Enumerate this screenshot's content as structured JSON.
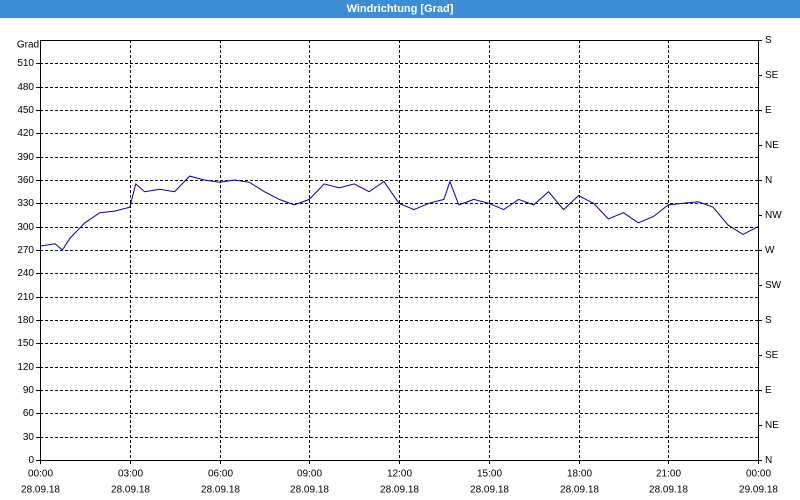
{
  "chart_data": {
    "type": "line",
    "title": "Windrichtung [Grad]",
    "y_label": "Grad",
    "x": [
      0,
      0.5,
      0.75,
      1,
      1.5,
      2,
      2.5,
      3,
      3.2,
      3.5,
      4,
      4.5,
      5,
      5.5,
      6,
      6.5,
      7,
      7.5,
      8,
      8.5,
      9,
      9.5,
      10,
      10.5,
      11,
      11.5,
      12,
      12.5,
      13,
      13.5,
      13.7,
      14,
      14.5,
      15,
      15.5,
      16,
      16.5,
      17,
      17.5,
      18,
      18.5,
      19,
      19.5,
      20,
      20.5,
      21,
      21.5,
      22,
      22.5,
      23,
      23.5,
      24
    ],
    "series": [
      {
        "name": "Windrichtung",
        "color": "#0000a0",
        "values": [
          275,
          278,
          270,
          285,
          305,
          318,
          320,
          325,
          355,
          345,
          348,
          345,
          365,
          360,
          357,
          360,
          357,
          345,
          335,
          328,
          335,
          355,
          350,
          355,
          345,
          358,
          330,
          322,
          330,
          335,
          358,
          328,
          335,
          330,
          322,
          335,
          328,
          345,
          322,
          340,
          330,
          310,
          318,
          305,
          313,
          328,
          330,
          332,
          325,
          302,
          290,
          300
        ]
      }
    ],
    "xlim": [
      0,
      24
    ],
    "xticks": [
      {
        "value": 0,
        "label": "00:00"
      },
      {
        "value": 3,
        "label": "03:00"
      },
      {
        "value": 6,
        "label": "06:00"
      },
      {
        "value": 9,
        "label": "09:00"
      },
      {
        "value": 12,
        "label": "12:00"
      },
      {
        "value": 15,
        "label": "15:00"
      },
      {
        "value": 18,
        "label": "18:00"
      },
      {
        "value": 21,
        "label": "21:00"
      },
      {
        "value": 24,
        "label": "00:00"
      }
    ],
    "xtick_dates": [
      "28.09.18",
      "28.09.18",
      "28.09.18",
      "28.09.18",
      "28.09.18",
      "28.09.18",
      "28.09.18",
      "28.09.18",
      "29.09.18"
    ],
    "ylim": [
      0,
      540
    ],
    "yticks": [
      0,
      30,
      60,
      90,
      120,
      150,
      180,
      210,
      240,
      270,
      300,
      330,
      360,
      390,
      420,
      450,
      480,
      510
    ],
    "y2lim": [
      0,
      540
    ],
    "y2ticks": [
      {
        "value": 0,
        "label": "N"
      },
      {
        "value": 45,
        "label": "NE"
      },
      {
        "value": 90,
        "label": "E"
      },
      {
        "value": 135,
        "label": "SE"
      },
      {
        "value": 180,
        "label": "S"
      },
      {
        "value": 225,
        "label": "SW"
      },
      {
        "value": 270,
        "label": "W"
      },
      {
        "value": 315,
        "label": "NW"
      },
      {
        "value": 360,
        "label": "N"
      },
      {
        "value": 405,
        "label": "NE"
      },
      {
        "value": 450,
        "label": "E"
      },
      {
        "value": 495,
        "label": "SE"
      },
      {
        "value": 540,
        "label": "S"
      }
    ],
    "grid": true
  }
}
